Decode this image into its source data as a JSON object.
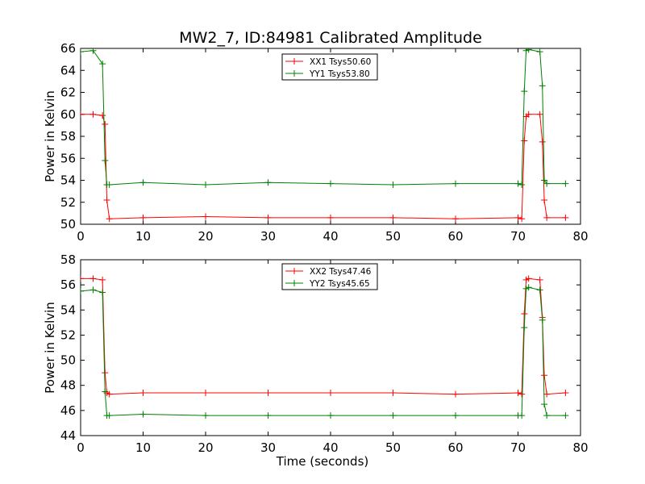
{
  "chart_data": [
    {
      "type": "line",
      "title": "MW2_7, ID:84981 Calibrated Amplitude",
      "xlabel": "",
      "ylabel": "Power in Kelvin",
      "xlim": [
        0,
        80
      ],
      "ylim": [
        50,
        66
      ],
      "xticks": [
        0,
        10,
        20,
        30,
        40,
        50,
        60,
        70,
        80
      ],
      "yticks": [
        50,
        52,
        54,
        56,
        58,
        60,
        62,
        64,
        66
      ],
      "grid": false,
      "legend_position": "top-center",
      "series": [
        {
          "name": "XX1 Tsys50.60",
          "color": "#ff0000",
          "marker": "+",
          "x": [
            0.0,
            2.0,
            3.5,
            3.9,
            4.2,
            4.6,
            10.0,
            20.0,
            30.0,
            40.0,
            50.0,
            60.0,
            70.0,
            70.6,
            71.0,
            71.3,
            71.7,
            73.5,
            73.9,
            74.2,
            74.6,
            77.6
          ],
          "y": [
            60.0,
            60.0,
            59.9,
            59.1,
            52.2,
            50.5,
            50.6,
            50.7,
            50.6,
            50.6,
            50.6,
            50.5,
            50.6,
            50.5,
            57.6,
            59.8,
            60.0,
            60.0,
            57.5,
            52.2,
            50.6,
            50.6
          ]
        },
        {
          "name": "YY1 Tsys53.80",
          "color": "#008000",
          "marker": "+",
          "x": [
            0.0,
            2.0,
            3.5,
            3.9,
            4.2,
            4.6,
            10.0,
            20.0,
            30.0,
            40.0,
            50.0,
            60.0,
            70.0,
            70.6,
            71.0,
            71.3,
            71.7,
            73.5,
            73.9,
            74.2,
            74.6,
            77.6
          ],
          "y": [
            65.7,
            65.8,
            64.6,
            55.8,
            53.6,
            53.6,
            53.8,
            53.6,
            53.8,
            53.7,
            53.6,
            53.7,
            53.7,
            53.6,
            62.1,
            65.8,
            65.9,
            65.7,
            62.6,
            54.0,
            53.7,
            53.7
          ]
        }
      ]
    },
    {
      "type": "line",
      "title": "",
      "xlabel": "Time (seconds)",
      "ylabel": "Power in Kelvin",
      "xlim": [
        0,
        80
      ],
      "ylim": [
        44,
        58
      ],
      "xticks": [
        0,
        10,
        20,
        30,
        40,
        50,
        60,
        70,
        80
      ],
      "yticks": [
        44,
        46,
        48,
        50,
        52,
        54,
        56,
        58
      ],
      "grid": false,
      "legend_position": "top-center",
      "series": [
        {
          "name": "XX2 Tsys47.46",
          "color": "#ff0000",
          "marker": "+",
          "x": [
            0.0,
            2.0,
            3.5,
            3.9,
            4.2,
            4.6,
            10.0,
            20.0,
            30.0,
            40.0,
            50.0,
            60.0,
            70.0,
            70.6,
            71.0,
            71.3,
            71.7,
            73.5,
            73.9,
            74.2,
            74.6,
            77.6
          ],
          "y": [
            56.5,
            56.5,
            56.4,
            49.0,
            47.4,
            47.3,
            47.4,
            47.4,
            47.4,
            47.4,
            47.4,
            47.3,
            47.4,
            47.3,
            53.7,
            56.4,
            56.5,
            56.4,
            53.4,
            48.8,
            47.3,
            47.4
          ]
        },
        {
          "name": "YY2 Tsys45.65",
          "color": "#008000",
          "marker": "+",
          "x": [
            0.0,
            2.0,
            3.5,
            3.9,
            4.2,
            4.6,
            10.0,
            20.0,
            30.0,
            40.0,
            50.0,
            60.0,
            70.0,
            70.6,
            71.0,
            71.3,
            71.7,
            73.5,
            73.9,
            74.2,
            74.6,
            77.6
          ],
          "y": [
            55.5,
            55.6,
            55.4,
            47.5,
            45.6,
            45.6,
            45.7,
            45.6,
            45.6,
            45.6,
            45.6,
            45.6,
            45.6,
            45.6,
            52.6,
            55.7,
            55.8,
            55.6,
            53.2,
            46.5,
            45.6,
            45.6
          ]
        }
      ]
    }
  ]
}
